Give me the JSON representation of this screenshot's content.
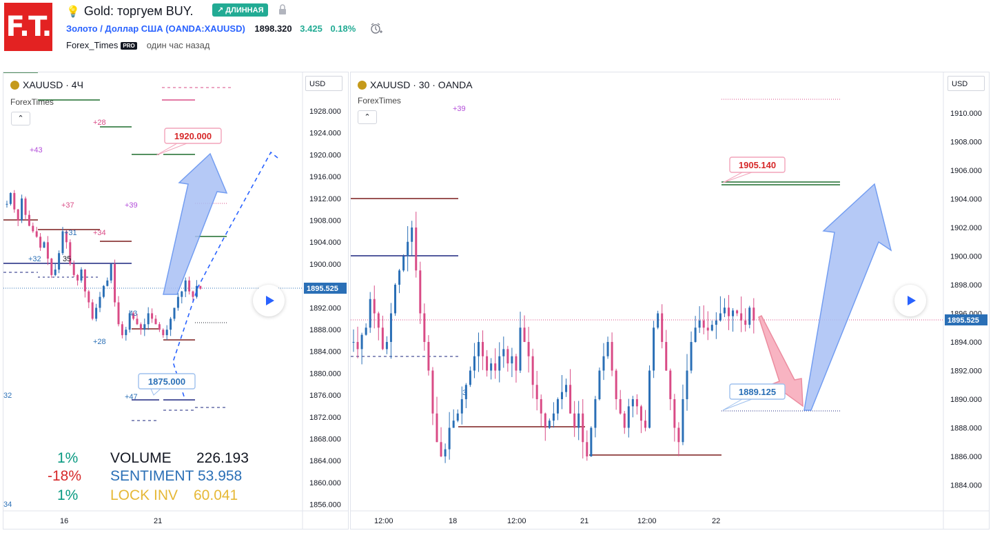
{
  "header": {
    "logo_text": "F.T.",
    "title": "Gold: торгуем BUY.",
    "direction_badge": "↗ ДЛИННАЯ",
    "symbol_link": "Золото / Доллар США",
    "symbol_ticker": "(OANDA:XAUUSD)",
    "price": "1898.320",
    "change": "3.425",
    "change_pct": "0.18%",
    "author": "Forex_Times",
    "author_badge": "PRO",
    "published": "один час назад"
  },
  "left_chart": {
    "legend": "XAUUSD · 4Ч",
    "indicator": "ForexTimes",
    "currency": "USD",
    "price_label": "1895.525",
    "target_label": "1920.000",
    "stop_label": "1875.000",
    "y_ticks": [
      "1928.000",
      "1924.000",
      "1920.000",
      "1916.000",
      "1912.000",
      "1908.000",
      "1904.000",
      "1900.000",
      "1896.000",
      "1892.000",
      "1888.000",
      "1884.000",
      "1880.000",
      "1876.000",
      "1872.000",
      "1868.000",
      "1864.000",
      "1860.000",
      "1856.000"
    ],
    "x_ticks": [
      "16",
      "21"
    ],
    "annotations": [
      "+28",
      "+43",
      "+37",
      "+39",
      "+34",
      "+31",
      "+32",
      "35",
      "+28",
      "43",
      "+47",
      "32",
      "34"
    ],
    "stats": [
      {
        "pct": "1%",
        "label": "VOLUME",
        "value": "226.193",
        "pct_color": "#089981",
        "label_color": "#131722"
      },
      {
        "pct": "-18%",
        "label": "SENTIMENT",
        "value": "53.958",
        "pct_color": "#d62728",
        "label_color": "#2a6fb6"
      },
      {
        "pct": "1%",
        "label": "LOCK INV",
        "value": "60.041",
        "pct_color": "#089981",
        "label_color": "#e6b836"
      }
    ]
  },
  "right_chart": {
    "legend": "XAUUSD · 30 · OANDA",
    "indicator": "ForexTimes",
    "currency": "USD",
    "price_label": "1895.525",
    "target_label": "1905.140",
    "entry_label": "1889.125",
    "y_ticks": [
      "1910.000",
      "1908.000",
      "1906.000",
      "1904.000",
      "1902.000",
      "1900.000",
      "1898.000",
      "1896.000",
      "1894.000",
      "1892.000",
      "1890.000",
      "1888.000",
      "1886.000",
      "1884.000"
    ],
    "x_ticks": [
      "12:00",
      "18",
      "12:00",
      "21",
      "12:00",
      "22"
    ],
    "annotations": [
      "+39",
      "3"
    ]
  },
  "colors": {
    "bull": "#2a6fb6",
    "bear": "#d94b86",
    "accent": "#2962ff",
    "up": "#22ab94"
  }
}
